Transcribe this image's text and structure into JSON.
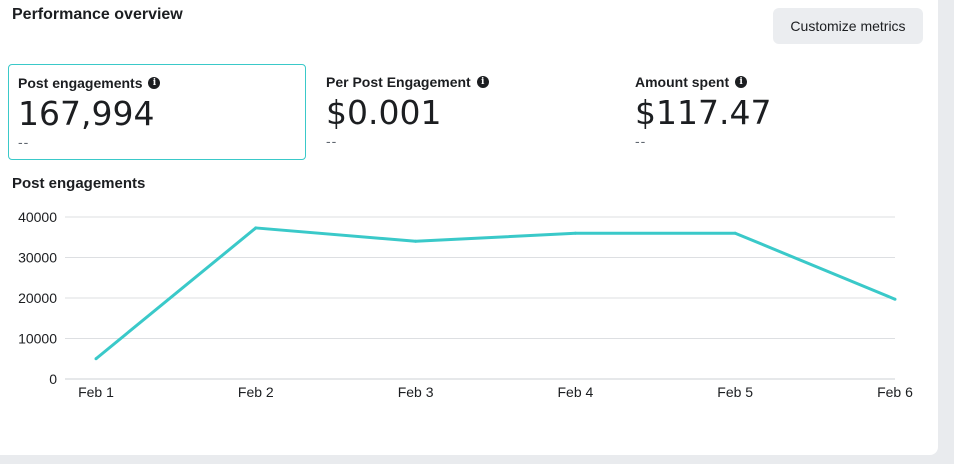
{
  "header": {
    "title": "Performance overview",
    "customize_label": "Customize metrics"
  },
  "metrics": [
    {
      "label": "Post engagements",
      "value": "167,994",
      "delta": "--",
      "selected": true
    },
    {
      "label": "Per Post Engagement",
      "value": "$0.001",
      "delta": "--",
      "selected": false
    },
    {
      "label": "Amount spent",
      "value": "$117.47",
      "delta": "--",
      "selected": false
    }
  ],
  "chart_title": "Post engagements",
  "colors": {
    "accent": "#3ac9c9",
    "text": "#1c1e21",
    "muted": "#606770",
    "gridline": "#dddfe2",
    "button_bg": "#ebedf0"
  },
  "chart_data": {
    "type": "line",
    "categories": [
      "Feb 1",
      "Feb 2",
      "Feb 3",
      "Feb 4",
      "Feb 5",
      "Feb 6"
    ],
    "series": [
      {
        "values": [
          5000,
          37300,
          34000,
          36000,
          36000,
          19700
        ]
      }
    ],
    "title": "Post engagements",
    "xlabel": "",
    "ylabel": "",
    "ylim": [
      0,
      40000
    ],
    "yticks": [
      "0",
      "10000",
      "20000",
      "30000",
      "40000"
    ],
    "grid": true,
    "color": "#3ac9c9"
  }
}
